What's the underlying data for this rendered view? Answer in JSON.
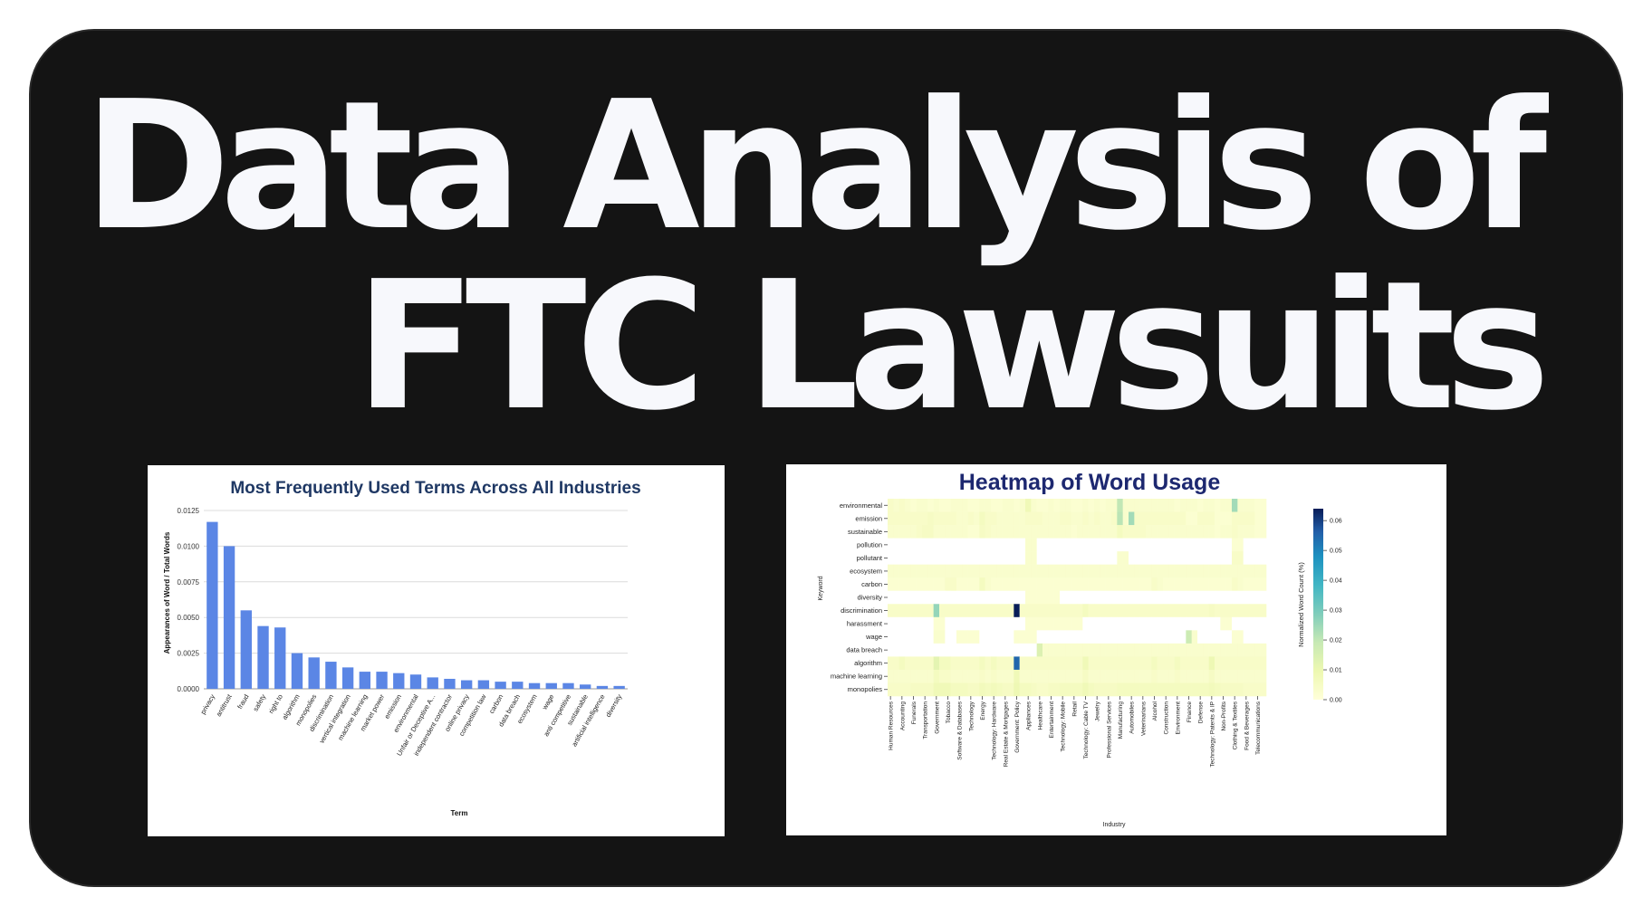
{
  "headline": {
    "line1": "Data Analysis of",
    "line2": "FTC Lawsuits"
  },
  "colors": {
    "background": "#141414",
    "headline": "#f7f8fc",
    "bar": "#5b86e5",
    "chart_title": "#1f3864",
    "heat_title": "#1d2870"
  },
  "chart_data": [
    {
      "type": "bar",
      "title": "Most Frequently Used Terms Across All Industries",
      "xlabel": "Term",
      "ylabel": "Appearances of Word / Total Words",
      "ylim": [
        0,
        0.0125
      ],
      "yticks": [
        "0.0000",
        "0.0025",
        "0.0050",
        "0.0075",
        "0.0100",
        "0.0125"
      ],
      "grid": true,
      "categories": [
        "privacy",
        "antitrust",
        "fraud",
        "safety",
        "right to",
        "algorithm",
        "monopolies",
        "discrimination",
        "vertical integration",
        "machine learning",
        "market power",
        "emission",
        "environmental",
        "Unfair or Deceptive A...",
        "independent contractor",
        "online privacy",
        "competition law",
        "carbon",
        "data breach",
        "ecosystem",
        "wage",
        "anti competitive",
        "sustainable",
        "artificial intelligence",
        "diversity"
      ],
      "values": [
        0.0117,
        0.01,
        0.0055,
        0.0044,
        0.0043,
        0.0025,
        0.0022,
        0.0019,
        0.0015,
        0.0012,
        0.0012,
        0.0011,
        0.001,
        0.0008,
        0.0007,
        0.0006,
        0.0006,
        0.0005,
        0.0005,
        0.0004,
        0.0004,
        0.0004,
        0.0003,
        0.0002,
        0.0002
      ]
    },
    {
      "type": "heatmap",
      "title": "Heatmap of Word Usage",
      "xlabel": "Industry",
      "ylabel": "Keyword",
      "colorbar_label": "Normalized Word Count (%)",
      "colorbar_ticks": [
        "0.00",
        "0.01",
        "0.02",
        "0.03",
        "0.04",
        "0.05",
        "0.06"
      ],
      "vmin": 0,
      "vmax": 0.064,
      "rows": [
        "environmental",
        "emission",
        "sustainable",
        "pollution",
        "pollutant",
        "ecosystem",
        "carbon",
        "diversity",
        "discrimination",
        "harassment",
        "wage",
        "data breach",
        "algorithm",
        "machine learning",
        "monopolies"
      ],
      "columns": [
        "Human Resources",
        "",
        "Accounting",
        "",
        "Funerals",
        "",
        "Transportation",
        "",
        "Government",
        "",
        "Tobacco",
        "",
        "Software & Databases",
        "",
        "Technology",
        "",
        "Energy",
        "",
        "Technology: Hardware",
        "",
        "Real Estate & Mortgages",
        "",
        "Government: Policy",
        "",
        "Appliances",
        "",
        "Healthcare",
        "",
        "Entertainment",
        "",
        "Technology: Mobile",
        "",
        "Retail",
        "",
        "Technology: Cable TV",
        "",
        "Jewelry",
        "",
        "Professional Services",
        "",
        "Manufacturing",
        "",
        "Automobiles",
        "",
        "Veterinarians",
        "",
        "Alcohol",
        "",
        "Construction",
        "",
        "Environment",
        "",
        "Finance",
        "",
        "Defense",
        "",
        "Technology: Patents & IP",
        "",
        "Non-Profits",
        "",
        "Clothing & Textiles",
        "",
        "Food & Beverages",
        "",
        "Telecommunications",
        ""
      ],
      "values": [
        [
          0.004,
          0.003,
          0.004,
          0.003,
          0.002,
          0.003,
          0.003,
          0.002,
          0.003,
          0.002,
          0.002,
          0.003,
          0.003,
          0.003,
          0.002,
          0.002,
          0.003,
          0.003,
          0.002,
          0.002,
          0.003,
          0.003,
          0.002,
          0.003,
          0.008,
          0.003,
          0.002,
          0.002,
          0.003,
          0.002,
          0.003,
          0.003,
          0.002,
          0.002,
          0.003,
          0.002,
          0.003,
          0.002,
          0.003,
          0.003,
          0.02,
          0.003,
          0.003,
          0.003,
          0.003,
          0.003,
          0.003,
          0.003,
          0.003,
          0.003,
          0.002,
          0.003,
          0.003,
          0.003,
          0.002,
          0.003,
          0.003,
          0.002,
          0.003,
          0.003,
          0.024,
          0.003,
          0.003,
          0.003,
          0.002,
          0.002
        ],
        [
          0.004,
          0.004,
          0.004,
          0.004,
          0.004,
          0.004,
          0.004,
          0.005,
          0.004,
          0.004,
          0.004,
          0.004,
          0.003,
          0.003,
          0.004,
          0.003,
          0.006,
          0.004,
          0.004,
          0.003,
          0.003,
          0.003,
          0.003,
          0.003,
          0.004,
          0.004,
          0.004,
          0.003,
          0.003,
          0.003,
          0.004,
          0.004,
          0.003,
          0.003,
          0.004,
          0.003,
          0.004,
          0.003,
          0.003,
          0.004,
          0.021,
          0.003,
          0.024,
          0.004,
          0.004,
          0.004,
          0.004,
          0.004,
          0.004,
          0.004,
          0.004,
          0.004,
          0.002,
          0.002,
          0.004,
          0.004,
          0.004,
          0.002,
          0.002,
          0.002,
          0.004,
          0.004,
          0.004,
          0.004,
          0.002,
          0.002
        ],
        [
          0.003,
          0.003,
          0.003,
          0.003,
          0.003,
          0.004,
          0.005,
          0.005,
          0.003,
          0.003,
          0.003,
          0.003,
          0.003,
          0.003,
          0.002,
          0.002,
          0.005,
          0.004,
          0.003,
          0.003,
          0.003,
          0.003,
          0.003,
          0.003,
          0.003,
          0.003,
          0.003,
          0.003,
          0.003,
          0.003,
          0.003,
          0.003,
          0.002,
          0.003,
          0.003,
          0.003,
          0.003,
          0.003,
          0.003,
          0.003,
          0.006,
          0.004,
          0.004,
          0.004,
          0.004,
          0.003,
          0.003,
          0.003,
          0.003,
          0.003,
          0.003,
          0.003,
          0.003,
          0.003,
          0.003,
          0.003,
          0.003,
          0.002,
          0.003,
          0.003,
          0.004,
          0.003,
          0.003,
          0.003,
          0.002,
          0.002
        ],
        [
          0,
          0,
          0,
          0,
          0,
          0,
          0,
          0,
          0,
          0,
          0,
          0,
          0,
          0,
          0,
          0,
          0,
          0,
          0,
          0,
          0,
          0,
          0,
          0,
          0.003,
          0.003,
          0,
          0,
          0,
          0,
          0,
          0,
          0,
          0,
          0,
          0,
          0,
          0,
          0,
          0,
          0,
          0,
          0,
          0,
          0,
          0,
          0,
          0,
          0,
          0,
          0,
          0,
          0,
          0,
          0,
          0,
          0,
          0,
          0,
          0,
          0.002,
          0.002,
          0,
          0,
          0,
          0
        ],
        [
          0,
          0,
          0,
          0,
          0,
          0,
          0,
          0,
          0,
          0,
          0,
          0,
          0,
          0,
          0,
          0,
          0,
          0,
          0,
          0,
          0,
          0,
          0,
          0,
          0.003,
          0.003,
          0,
          0,
          0,
          0,
          0,
          0,
          0,
          0,
          0,
          0,
          0,
          0,
          0,
          0,
          0.003,
          0.003,
          0,
          0,
          0,
          0,
          0,
          0,
          0,
          0,
          0,
          0,
          0,
          0,
          0,
          0,
          0,
          0,
          0,
          0,
          0.004,
          0.004,
          0,
          0,
          0,
          0
        ],
        [
          0.003,
          0.003,
          0.003,
          0.003,
          0.003,
          0.003,
          0.003,
          0.003,
          0.003,
          0.003,
          0.003,
          0.003,
          0.003,
          0.003,
          0.003,
          0.003,
          0.003,
          0.003,
          0.003,
          0.003,
          0.003,
          0.003,
          0.003,
          0.003,
          0.003,
          0.003,
          0.003,
          0.003,
          0.003,
          0.003,
          0.003,
          0.003,
          0.003,
          0.003,
          0.003,
          0.003,
          0.003,
          0.003,
          0.003,
          0.003,
          0.003,
          0.003,
          0.003,
          0.003,
          0.003,
          0.003,
          0.003,
          0.003,
          0.003,
          0.003,
          0.003,
          0.003,
          0.003,
          0.003,
          0.003,
          0.003,
          0.003,
          0.003,
          0.003,
          0.003,
          0.003,
          0.003,
          0.003,
          0.003,
          0.003,
          0.003
        ],
        [
          0.002,
          0.002,
          0.002,
          0.002,
          0.002,
          0.002,
          0.002,
          0.002,
          0.002,
          0.002,
          0.004,
          0.004,
          0.002,
          0.002,
          0.002,
          0.002,
          0.006,
          0.003,
          0.002,
          0.002,
          0.002,
          0.002,
          0.002,
          0.002,
          0.002,
          0.002,
          0.002,
          0.002,
          0.002,
          0.002,
          0.002,
          0.002,
          0.002,
          0.002,
          0.002,
          0.002,
          0.002,
          0.002,
          0.002,
          0.002,
          0.002,
          0.002,
          0.002,
          0.002,
          0.002,
          0.002,
          0.004,
          0.003,
          0.002,
          0.002,
          0.002,
          0.002,
          0.002,
          0.002,
          0.002,
          0.002,
          0.002,
          0.002,
          0.002,
          0.002,
          0.004,
          0.003,
          0.002,
          0.002,
          0.002,
          0.002
        ],
        [
          0,
          0,
          0,
          0,
          0,
          0,
          0,
          0,
          0,
          0,
          0,
          0,
          0,
          0,
          0,
          0,
          0,
          0,
          0,
          0,
          0,
          0,
          0,
          0,
          0.002,
          0.002,
          0.002,
          0.002,
          0.002,
          0.002,
          0,
          0,
          0,
          0,
          0,
          0,
          0,
          0,
          0,
          0,
          0,
          0,
          0,
          0,
          0,
          0,
          0,
          0,
          0,
          0,
          0,
          0,
          0,
          0,
          0,
          0,
          0,
          0,
          0,
          0,
          0,
          0,
          0,
          0,
          0,
          0
        ],
        [
          0.004,
          0.004,
          0.004,
          0.004,
          0.004,
          0.004,
          0.004,
          0.004,
          0.026,
          0.004,
          0.004,
          0.004,
          0.004,
          0.004,
          0.004,
          0.004,
          0.004,
          0.004,
          0.004,
          0.004,
          0.004,
          0.004,
          0.064,
          0.004,
          0.004,
          0.004,
          0.004,
          0.004,
          0.004,
          0.004,
          0.004,
          0.004,
          0.004,
          0.004,
          0.006,
          0.004,
          0.004,
          0.004,
          0.004,
          0.004,
          0.004,
          0.004,
          0.004,
          0.004,
          0.004,
          0.004,
          0.004,
          0.004,
          0.004,
          0.004,
          0.004,
          0.004,
          0.004,
          0.004,
          0.004,
          0.004,
          0.005,
          0.004,
          0.004,
          0.004,
          0.004,
          0.004,
          0.004,
          0.004,
          0.004,
          0.004
        ],
        [
          0,
          0,
          0,
          0,
          0,
          0,
          0,
          0,
          0.002,
          0.002,
          0,
          0,
          0,
          0,
          0,
          0,
          0,
          0,
          0,
          0,
          0,
          0,
          0,
          0,
          0.002,
          0.002,
          0.002,
          0.002,
          0.002,
          0.002,
          0.002,
          0.002,
          0.002,
          0.002,
          0,
          0,
          0,
          0,
          0,
          0,
          0,
          0,
          0,
          0,
          0,
          0,
          0,
          0,
          0,
          0,
          0,
          0,
          0,
          0,
          0,
          0,
          0,
          0,
          0.002,
          0.002,
          0,
          0,
          0,
          0,
          0,
          0
        ],
        [
          0,
          0,
          0,
          0,
          0,
          0,
          0,
          0,
          0.003,
          0.003,
          0,
          0,
          0.002,
          0.002,
          0.002,
          0.002,
          0,
          0,
          0,
          0,
          0,
          0,
          0.002,
          0.002,
          0.002,
          0.002,
          0,
          0,
          0,
          0,
          0,
          0,
          0,
          0,
          0,
          0,
          0,
          0,
          0,
          0,
          0,
          0,
          0,
          0,
          0,
          0,
          0,
          0,
          0,
          0,
          0,
          0,
          0.018,
          0.003,
          0,
          0,
          0,
          0,
          0,
          0,
          0.002,
          0.002,
          0,
          0,
          0,
          0
        ],
        [
          0,
          0,
          0,
          0,
          0,
          0,
          0,
          0,
          0,
          0,
          0,
          0,
          0,
          0,
          0,
          0,
          0,
          0,
          0,
          0,
          0,
          0,
          0,
          0,
          0,
          0,
          0.014,
          0.003,
          0.003,
          0.003,
          0.003,
          0.003,
          0.003,
          0.003,
          0.003,
          0.003,
          0.003,
          0.003,
          0.003,
          0.003,
          0.003,
          0.003,
          0.003,
          0.003,
          0.003,
          0.003,
          0.003,
          0.003,
          0.003,
          0.003,
          0.003,
          0.003,
          0.003,
          0.003,
          0.003,
          0.003,
          0.003,
          0.003,
          0.003,
          0.003,
          0.003,
          0.003,
          0.003,
          0.003,
          0.003,
          0.003
        ],
        [
          0.004,
          0.004,
          0.006,
          0.004,
          0.004,
          0.004,
          0.004,
          0.004,
          0.012,
          0.006,
          0.006,
          0.004,
          0.004,
          0.004,
          0.004,
          0.004,
          0.006,
          0.004,
          0.006,
          0.004,
          0.004,
          0.004,
          0.055,
          0.004,
          0.004,
          0.004,
          0.004,
          0.004,
          0.004,
          0.004,
          0.004,
          0.004,
          0.004,
          0.004,
          0.008,
          0.004,
          0.004,
          0.004,
          0.004,
          0.004,
          0.004,
          0.004,
          0.004,
          0.004,
          0.004,
          0.004,
          0.006,
          0.004,
          0.004,
          0.004,
          0.006,
          0.004,
          0.004,
          0.004,
          0.004,
          0.004,
          0.009,
          0.004,
          0.004,
          0.004,
          0.004,
          0.004,
          0.004,
          0.004,
          0.004,
          0.004
        ],
        [
          0.003,
          0.003,
          0.003,
          0.003,
          0.003,
          0.003,
          0.003,
          0.003,
          0.006,
          0.004,
          0.004,
          0.003,
          0.003,
          0.003,
          0.003,
          0.003,
          0.004,
          0.003,
          0.004,
          0.003,
          0.003,
          0.003,
          0.008,
          0.003,
          0.003,
          0.003,
          0.003,
          0.003,
          0.003,
          0.003,
          0.003,
          0.003,
          0.003,
          0.003,
          0.005,
          0.003,
          0.003,
          0.003,
          0.003,
          0.003,
          0.003,
          0.003,
          0.003,
          0.003,
          0.003,
          0.003,
          0.004,
          0.003,
          0.003,
          0.003,
          0.004,
          0.003,
          0.003,
          0.003,
          0.003,
          0.003,
          0.005,
          0.003,
          0.003,
          0.003,
          0.003,
          0.003,
          0.003,
          0.003,
          0.003,
          0.003
        ],
        [
          0.004,
          0.004,
          0.004,
          0.004,
          0.005,
          0.005,
          0.005,
          0.005,
          0.008,
          0.008,
          0.008,
          0.006,
          0.006,
          0.006,
          0.005,
          0.005,
          0.007,
          0.006,
          0.007,
          0.006,
          0.005,
          0.005,
          0.009,
          0.006,
          0.006,
          0.005,
          0.004,
          0.004,
          0.005,
          0.005,
          0.006,
          0.006,
          0.006,
          0.006,
          0.008,
          0.006,
          0.005,
          0.005,
          0.005,
          0.005,
          0.006,
          0.006,
          0.006,
          0.006,
          0.006,
          0.006,
          0.006,
          0.006,
          0.006,
          0.006,
          0.006,
          0.006,
          0.006,
          0.006,
          0.006,
          0.006,
          0.007,
          0.006,
          0.005,
          0.005,
          0.005,
          0.005,
          0.004,
          0.004,
          0.004,
          0.004
        ]
      ]
    }
  ]
}
